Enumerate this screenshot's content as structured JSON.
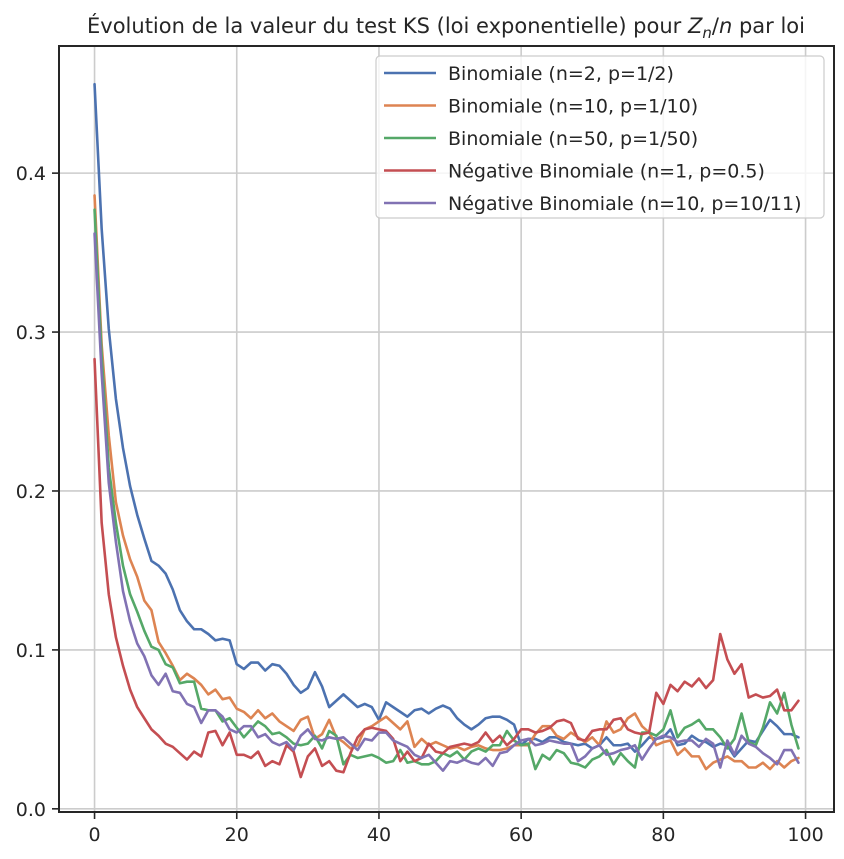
{
  "chart_data": {
    "type": "line",
    "title": "Évolution de la valeur du test KS (loi exponentielle) pour Z_n/n par loi",
    "title_parts": {
      "before": "Évolution de la valeur du test KS (loi exponentielle) pour ",
      "var": "Z",
      "sub": "n",
      "slash": "/",
      "var2": "n",
      "after": " par loi"
    },
    "xlabel": "",
    "ylabel": "",
    "xlim": [
      -5,
      104
    ],
    "ylim": [
      -0.002,
      0.48
    ],
    "xticks": [
      0,
      20,
      40,
      60,
      80,
      100
    ],
    "yticks": [
      0.0,
      0.1,
      0.2,
      0.3,
      0.4
    ],
    "xtick_labels": [
      "0",
      "20",
      "40",
      "60",
      "80",
      "100"
    ],
    "ytick_labels": [
      "0.0",
      "0.1",
      "0.2",
      "0.3",
      "0.4"
    ],
    "grid": true,
    "legend_position": "top-right",
    "x": [
      0,
      1,
      2,
      3,
      4,
      5,
      6,
      7,
      8,
      9,
      10,
      11,
      12,
      13,
      14,
      15,
      16,
      17,
      18,
      19,
      20,
      21,
      22,
      23,
      24,
      25,
      26,
      27,
      28,
      29,
      30,
      31,
      32,
      33,
      34,
      35,
      36,
      37,
      38,
      39,
      40,
      41,
      42,
      43,
      44,
      45,
      46,
      47,
      48,
      49,
      50,
      51,
      52,
      53,
      54,
      55,
      56,
      57,
      58,
      59,
      60,
      61,
      62,
      63,
      64,
      65,
      66,
      67,
      68,
      69,
      70,
      71,
      72,
      73,
      74,
      75,
      76,
      77,
      78,
      79,
      80,
      81,
      82,
      83,
      84,
      85,
      86,
      87,
      88,
      89,
      90,
      91,
      92,
      93,
      94,
      95,
      96,
      97,
      98,
      99
    ],
    "series": [
      {
        "name": "Binomiale (n=2, p=1/2)",
        "color": "#4c72b0",
        "values": [
          0.456,
          0.365,
          0.302,
          0.258,
          0.227,
          0.203,
          0.185,
          0.17,
          0.156,
          0.153,
          0.148,
          0.138,
          0.125,
          0.118,
          0.113,
          0.113,
          0.11,
          0.106,
          0.107,
          0.106,
          0.091,
          0.088,
          0.092,
          0.092,
          0.087,
          0.091,
          0.09,
          0.085,
          0.078,
          0.073,
          0.076,
          0.086,
          0.077,
          0.064,
          0.068,
          0.072,
          0.068,
          0.064,
          0.066,
          0.064,
          0.056,
          0.067,
          0.064,
          0.061,
          0.058,
          0.062,
          0.063,
          0.06,
          0.063,
          0.065,
          0.063,
          0.057,
          0.053,
          0.05,
          0.053,
          0.057,
          0.058,
          0.058,
          0.056,
          0.053,
          0.04,
          0.044,
          0.044,
          0.042,
          0.045,
          0.045,
          0.042,
          0.041,
          0.04,
          0.041,
          0.038,
          0.04,
          0.045,
          0.04,
          0.04,
          0.041,
          0.036,
          0.04,
          0.045,
          0.044,
          0.045,
          0.05,
          0.04,
          0.041,
          0.046,
          0.043,
          0.042,
          0.039,
          0.041,
          0.04,
          0.033,
          0.038,
          0.043,
          0.042,
          0.049,
          0.056,
          0.052,
          0.047,
          0.047,
          0.045
        ]
      },
      {
        "name": "Binomiale (n=10, p=1/10)",
        "color": "#dd8452",
        "values": [
          0.386,
          0.292,
          0.235,
          0.193,
          0.172,
          0.157,
          0.146,
          0.131,
          0.125,
          0.105,
          0.098,
          0.09,
          0.081,
          0.085,
          0.082,
          0.078,
          0.072,
          0.075,
          0.069,
          0.07,
          0.063,
          0.061,
          0.057,
          0.062,
          0.057,
          0.06,
          0.055,
          0.052,
          0.049,
          0.056,
          0.058,
          0.044,
          0.047,
          0.056,
          0.045,
          0.042,
          0.038,
          0.04,
          0.05,
          0.052,
          0.055,
          0.058,
          0.054,
          0.05,
          0.055,
          0.039,
          0.044,
          0.04,
          0.042,
          0.04,
          0.038,
          0.039,
          0.037,
          0.039,
          0.04,
          0.038,
          0.037,
          0.037,
          0.038,
          0.04,
          0.04,
          0.04,
          0.047,
          0.052,
          0.052,
          0.046,
          0.044,
          0.048,
          0.045,
          0.042,
          0.045,
          0.04,
          0.055,
          0.048,
          0.05,
          0.057,
          0.06,
          0.052,
          0.048,
          0.04,
          0.042,
          0.043,
          0.034,
          0.038,
          0.033,
          0.033,
          0.025,
          0.029,
          0.031,
          0.033,
          0.03,
          0.03,
          0.026,
          0.026,
          0.029,
          0.025,
          0.03,
          0.026,
          0.03,
          0.032
        ]
      },
      {
        "name": "Binomiale (n=50, p=1/50)",
        "color": "#55a868",
        "values": [
          0.377,
          0.285,
          0.215,
          0.18,
          0.153,
          0.135,
          0.124,
          0.112,
          0.102,
          0.1,
          0.091,
          0.089,
          0.079,
          0.08,
          0.08,
          0.063,
          0.062,
          0.062,
          0.055,
          0.057,
          0.051,
          0.045,
          0.05,
          0.055,
          0.052,
          0.047,
          0.048,
          0.045,
          0.041,
          0.04,
          0.041,
          0.046,
          0.038,
          0.049,
          0.046,
          0.028,
          0.034,
          0.032,
          0.033,
          0.034,
          0.032,
          0.029,
          0.03,
          0.037,
          0.029,
          0.03,
          0.028,
          0.028,
          0.03,
          0.035,
          0.033,
          0.036,
          0.031,
          0.036,
          0.038,
          0.036,
          0.04,
          0.04,
          0.049,
          0.043,
          0.04,
          0.041,
          0.025,
          0.034,
          0.031,
          0.037,
          0.035,
          0.029,
          0.028,
          0.026,
          0.031,
          0.033,
          0.037,
          0.028,
          0.035,
          0.03,
          0.026,
          0.048,
          0.048,
          0.046,
          0.05,
          0.062,
          0.045,
          0.051,
          0.053,
          0.056,
          0.05,
          0.05,
          0.045,
          0.038,
          0.044,
          0.06,
          0.042,
          0.04,
          0.051,
          0.067,
          0.06,
          0.073,
          0.053,
          0.038
        ]
      },
      {
        "name": "Négative Binomiale (n=1, p=0.5)",
        "color": "#c44e52",
        "values": [
          0.283,
          0.18,
          0.135,
          0.108,
          0.09,
          0.075,
          0.064,
          0.057,
          0.05,
          0.046,
          0.041,
          0.039,
          0.035,
          0.031,
          0.036,
          0.033,
          0.048,
          0.049,
          0.04,
          0.048,
          0.034,
          0.034,
          0.032,
          0.036,
          0.027,
          0.03,
          0.028,
          0.04,
          0.036,
          0.02,
          0.033,
          0.038,
          0.027,
          0.03,
          0.024,
          0.023,
          0.035,
          0.045,
          0.05,
          0.051,
          0.05,
          0.049,
          0.044,
          0.03,
          0.036,
          0.03,
          0.032,
          0.041,
          0.036,
          0.035,
          0.039,
          0.04,
          0.041,
          0.04,
          0.042,
          0.048,
          0.042,
          0.046,
          0.04,
          0.044,
          0.05,
          0.05,
          0.048,
          0.049,
          0.051,
          0.055,
          0.056,
          0.054,
          0.044,
          0.043,
          0.049,
          0.05,
          0.05,
          0.056,
          0.057,
          0.05,
          0.048,
          0.047,
          0.048,
          0.073,
          0.066,
          0.078,
          0.074,
          0.08,
          0.077,
          0.082,
          0.076,
          0.081,
          0.11,
          0.094,
          0.085,
          0.091,
          0.07,
          0.072,
          0.07,
          0.071,
          0.075,
          0.062,
          0.062,
          0.068
        ]
      },
      {
        "name": "Négative Binomiale (n=10, p=10/11)",
        "color": "#8172b3",
        "values": [
          0.362,
          0.274,
          0.205,
          0.168,
          0.137,
          0.118,
          0.104,
          0.096,
          0.084,
          0.078,
          0.085,
          0.074,
          0.073,
          0.066,
          0.064,
          0.054,
          0.062,
          0.062,
          0.058,
          0.05,
          0.048,
          0.052,
          0.052,
          0.045,
          0.047,
          0.042,
          0.04,
          0.042,
          0.037,
          0.046,
          0.05,
          0.044,
          0.043,
          0.045,
          0.044,
          0.045,
          0.041,
          0.037,
          0.044,
          0.043,
          0.048,
          0.048,
          0.043,
          0.041,
          0.039,
          0.034,
          0.032,
          0.034,
          0.029,
          0.024,
          0.03,
          0.029,
          0.031,
          0.029,
          0.028,
          0.032,
          0.027,
          0.035,
          0.036,
          0.04,
          0.043,
          0.044,
          0.04,
          0.041,
          0.043,
          0.042,
          0.041,
          0.041,
          0.03,
          0.033,
          0.038,
          0.04,
          0.034,
          0.035,
          0.037,
          0.038,
          0.04,
          0.031,
          0.038,
          0.044,
          0.046,
          0.045,
          0.042,
          0.043,
          0.043,
          0.039,
          0.044,
          0.041,
          0.026,
          0.043,
          0.034,
          0.046,
          0.041,
          0.039,
          0.035,
          0.032,
          0.028,
          0.037,
          0.037,
          0.029
        ]
      }
    ]
  }
}
